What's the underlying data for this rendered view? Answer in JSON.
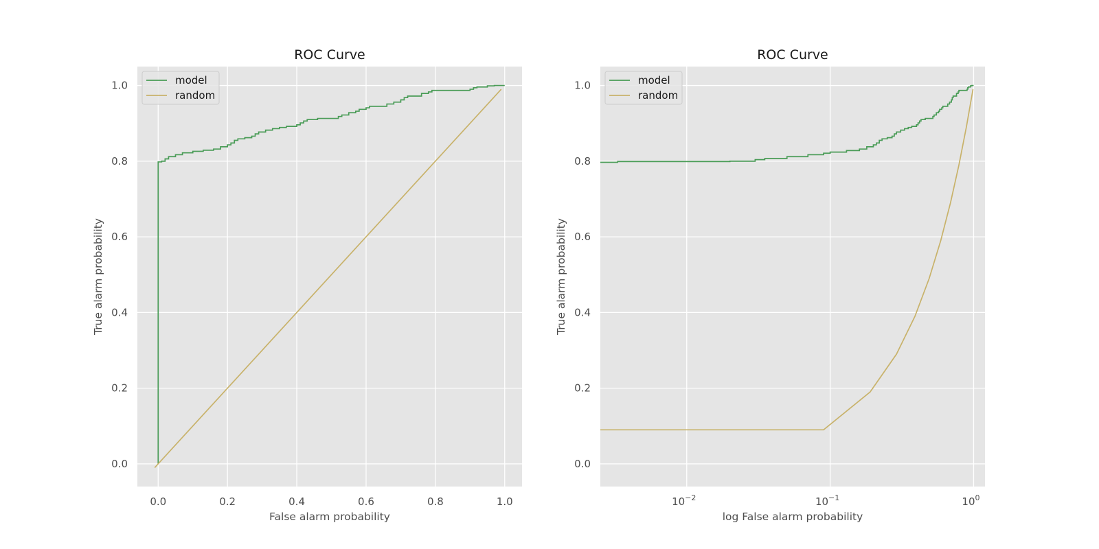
{
  "figure": {
    "background": "#ffffff"
  },
  "chart_data": [
    {
      "type": "line",
      "title": "ROC Curve",
      "xlabel": "False alarm probability",
      "ylabel": "True alarm probability",
      "xscale": "linear",
      "xlim": [
        -0.06,
        1.05
      ],
      "ylim": [
        -0.06,
        1.05
      ],
      "xticks": [
        0,
        0.2,
        0.4,
        0.6,
        0.8,
        1.0
      ],
      "xtick_labels": [
        "0.0",
        "0.2",
        "0.4",
        "0.6",
        "0.8",
        "1.0"
      ],
      "yticks": [
        0,
        0.2,
        0.4,
        0.6,
        0.8,
        1.0
      ],
      "ytick_labels": [
        "0.0",
        "0.2",
        "0.4",
        "0.6",
        "0.8",
        "1.0"
      ],
      "grid": true,
      "legend": "top-left",
      "series": [
        {
          "name": "model",
          "color": "#4a9c57",
          "step": true,
          "points": [
            [
              0,
              0
            ],
            [
              0,
              0.798
            ],
            [
              0.01,
              0.8
            ],
            [
              0.02,
              0.806
            ],
            [
              0.03,
              0.812
            ],
            [
              0.05,
              0.817
            ],
            [
              0.07,
              0.822
            ],
            [
              0.1,
              0.826
            ],
            [
              0.13,
              0.829
            ],
            [
              0.16,
              0.832
            ],
            [
              0.18,
              0.838
            ],
            [
              0.2,
              0.843
            ],
            [
              0.21,
              0.848
            ],
            [
              0.22,
              0.855
            ],
            [
              0.23,
              0.859
            ],
            [
              0.25,
              0.862
            ],
            [
              0.27,
              0.866
            ],
            [
              0.28,
              0.872
            ],
            [
              0.29,
              0.877
            ],
            [
              0.31,
              0.882
            ],
            [
              0.33,
              0.886
            ],
            [
              0.35,
              0.889
            ],
            [
              0.37,
              0.892
            ],
            [
              0.4,
              0.896
            ],
            [
              0.41,
              0.901
            ],
            [
              0.42,
              0.906
            ],
            [
              0.43,
              0.91
            ],
            [
              0.46,
              0.913
            ],
            [
              0.52,
              0.918
            ],
            [
              0.53,
              0.922
            ],
            [
              0.55,
              0.928
            ],
            [
              0.57,
              0.932
            ],
            [
              0.58,
              0.937
            ],
            [
              0.6,
              0.941
            ],
            [
              0.61,
              0.945
            ],
            [
              0.66,
              0.951
            ],
            [
              0.68,
              0.956
            ],
            [
              0.7,
              0.962
            ],
            [
              0.71,
              0.968
            ],
            [
              0.72,
              0.972
            ],
            [
              0.76,
              0.979
            ],
            [
              0.78,
              0.983
            ],
            [
              0.79,
              0.987
            ],
            [
              0.9,
              0.99
            ],
            [
              0.91,
              0.994
            ],
            [
              0.92,
              0.996
            ],
            [
              0.95,
              0.999
            ],
            [
              0.97,
              1.0
            ],
            [
              1.0,
              1.0
            ]
          ]
        },
        {
          "name": "random",
          "color": "#c8b26a",
          "step": false,
          "points": [
            [
              -0.01,
              -0.01
            ],
            [
              0.99,
              0.99
            ]
          ]
        }
      ]
    },
    {
      "type": "line",
      "title": "ROC Curve",
      "xlabel": "log False alarm probability",
      "ylabel": "True alarm probability",
      "xscale": "log",
      "xlim": [
        0.0025,
        1.2
      ],
      "ylim": [
        -0.06,
        1.05
      ],
      "xticks": [
        0.01,
        0.1,
        1
      ],
      "xtick_labels": [
        "10",
        "10",
        "10"
      ],
      "xtick_exponents": [
        "−2",
        "−1",
        "0"
      ],
      "yticks": [
        0,
        0.2,
        0.4,
        0.6,
        0.8,
        1.0
      ],
      "ytick_labels": [
        "0.0",
        "0.2",
        "0.4",
        "0.6",
        "0.8",
        "1.0"
      ],
      "grid": true,
      "legend": "top-left",
      "series": [
        {
          "name": "model",
          "color": "#4a9c57",
          "step": true,
          "points": [
            [
              0.0025,
              0.797
            ],
            [
              0.0033,
              0.799
            ],
            [
              0.009,
              0.799
            ],
            [
              0.02,
              0.8
            ],
            [
              0.03,
              0.804
            ],
            [
              0.035,
              0.807
            ],
            [
              0.05,
              0.812
            ],
            [
              0.07,
              0.817
            ],
            [
              0.09,
              0.821
            ],
            [
              0.1,
              0.824
            ],
            [
              0.13,
              0.828
            ],
            [
              0.16,
              0.832
            ],
            [
              0.18,
              0.838
            ],
            [
              0.2,
              0.843
            ],
            [
              0.21,
              0.848
            ],
            [
              0.22,
              0.855
            ],
            [
              0.23,
              0.859
            ],
            [
              0.25,
              0.862
            ],
            [
              0.27,
              0.866
            ],
            [
              0.28,
              0.872
            ],
            [
              0.29,
              0.877
            ],
            [
              0.31,
              0.882
            ],
            [
              0.33,
              0.886
            ],
            [
              0.35,
              0.889
            ],
            [
              0.37,
              0.892
            ],
            [
              0.4,
              0.896
            ],
            [
              0.41,
              0.901
            ],
            [
              0.42,
              0.906
            ],
            [
              0.43,
              0.91
            ],
            [
              0.46,
              0.913
            ],
            [
              0.52,
              0.918
            ],
            [
              0.53,
              0.922
            ],
            [
              0.55,
              0.928
            ],
            [
              0.57,
              0.932
            ],
            [
              0.58,
              0.937
            ],
            [
              0.6,
              0.941
            ],
            [
              0.61,
              0.945
            ],
            [
              0.66,
              0.951
            ],
            [
              0.68,
              0.956
            ],
            [
              0.7,
              0.962
            ],
            [
              0.71,
              0.968
            ],
            [
              0.72,
              0.972
            ],
            [
              0.76,
              0.979
            ],
            [
              0.78,
              0.983
            ],
            [
              0.79,
              0.987
            ],
            [
              0.9,
              0.99
            ],
            [
              0.91,
              0.994
            ],
            [
              0.92,
              0.996
            ],
            [
              0.95,
              0.999
            ],
            [
              0.97,
              1.0
            ],
            [
              1.0,
              1.0
            ]
          ]
        },
        {
          "name": "random",
          "color": "#c8b26a",
          "step": false,
          "points": [
            [
              0.0025,
              0.09
            ],
            [
              0.09,
              0.09
            ],
            [
              0.19,
              0.19
            ],
            [
              0.29,
              0.29
            ],
            [
              0.39,
              0.39
            ],
            [
              0.49,
              0.49
            ],
            [
              0.59,
              0.59
            ],
            [
              0.69,
              0.69
            ],
            [
              0.79,
              0.79
            ],
            [
              0.89,
              0.89
            ],
            [
              0.99,
              0.99
            ]
          ]
        }
      ]
    }
  ]
}
